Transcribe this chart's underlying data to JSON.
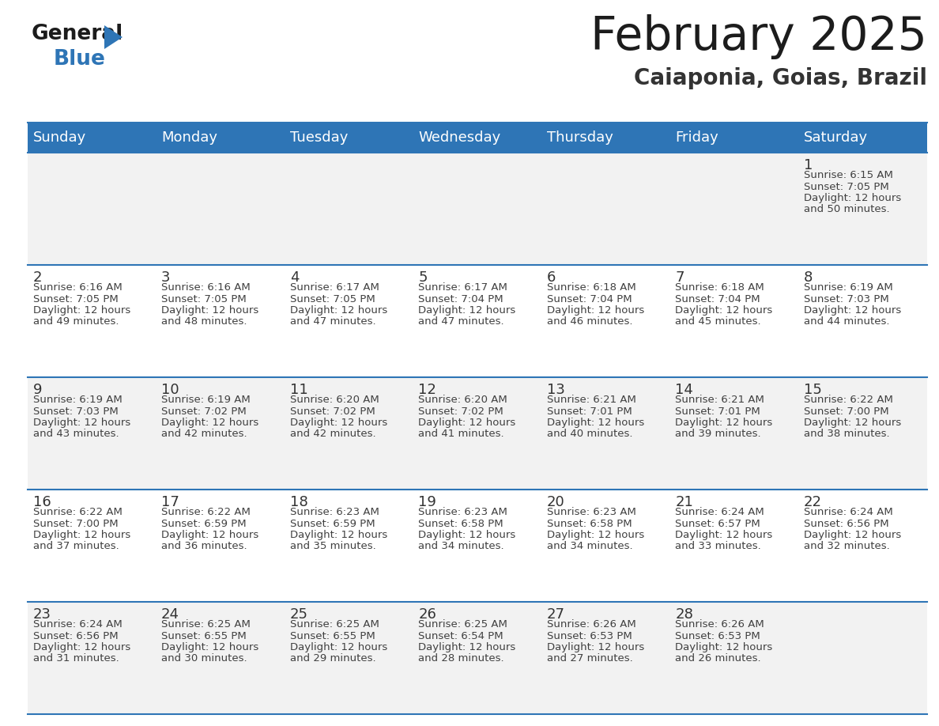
{
  "title": "February 2025",
  "subtitle": "Caiaponia, Goias, Brazil",
  "header_bg": "#2E75B6",
  "header_text_color": "#FFFFFF",
  "cell_bg_odd": "#F2F2F2",
  "cell_bg_even": "#FFFFFF",
  "day_names": [
    "Sunday",
    "Monday",
    "Tuesday",
    "Wednesday",
    "Thursday",
    "Friday",
    "Saturday"
  ],
  "border_color": "#2E75B6",
  "day_number_color": "#333333",
  "cell_text_color": "#404040",
  "days_data": [
    {
      "day": 1,
      "col": 6,
      "row": 0,
      "sunrise": "6:15 AM",
      "sunset": "7:05 PM",
      "daylight_hours": 12,
      "daylight_minutes": 50
    },
    {
      "day": 2,
      "col": 0,
      "row": 1,
      "sunrise": "6:16 AM",
      "sunset": "7:05 PM",
      "daylight_hours": 12,
      "daylight_minutes": 49
    },
    {
      "day": 3,
      "col": 1,
      "row": 1,
      "sunrise": "6:16 AM",
      "sunset": "7:05 PM",
      "daylight_hours": 12,
      "daylight_minutes": 48
    },
    {
      "day": 4,
      "col": 2,
      "row": 1,
      "sunrise": "6:17 AM",
      "sunset": "7:05 PM",
      "daylight_hours": 12,
      "daylight_minutes": 47
    },
    {
      "day": 5,
      "col": 3,
      "row": 1,
      "sunrise": "6:17 AM",
      "sunset": "7:04 PM",
      "daylight_hours": 12,
      "daylight_minutes": 47
    },
    {
      "day": 6,
      "col": 4,
      "row": 1,
      "sunrise": "6:18 AM",
      "sunset": "7:04 PM",
      "daylight_hours": 12,
      "daylight_minutes": 46
    },
    {
      "day": 7,
      "col": 5,
      "row": 1,
      "sunrise": "6:18 AM",
      "sunset": "7:04 PM",
      "daylight_hours": 12,
      "daylight_minutes": 45
    },
    {
      "day": 8,
      "col": 6,
      "row": 1,
      "sunrise": "6:19 AM",
      "sunset": "7:03 PM",
      "daylight_hours": 12,
      "daylight_minutes": 44
    },
    {
      "day": 9,
      "col": 0,
      "row": 2,
      "sunrise": "6:19 AM",
      "sunset": "7:03 PM",
      "daylight_hours": 12,
      "daylight_minutes": 43
    },
    {
      "day": 10,
      "col": 1,
      "row": 2,
      "sunrise": "6:19 AM",
      "sunset": "7:02 PM",
      "daylight_hours": 12,
      "daylight_minutes": 42
    },
    {
      "day": 11,
      "col": 2,
      "row": 2,
      "sunrise": "6:20 AM",
      "sunset": "7:02 PM",
      "daylight_hours": 12,
      "daylight_minutes": 42
    },
    {
      "day": 12,
      "col": 3,
      "row": 2,
      "sunrise": "6:20 AM",
      "sunset": "7:02 PM",
      "daylight_hours": 12,
      "daylight_minutes": 41
    },
    {
      "day": 13,
      "col": 4,
      "row": 2,
      "sunrise": "6:21 AM",
      "sunset": "7:01 PM",
      "daylight_hours": 12,
      "daylight_minutes": 40
    },
    {
      "day": 14,
      "col": 5,
      "row": 2,
      "sunrise": "6:21 AM",
      "sunset": "7:01 PM",
      "daylight_hours": 12,
      "daylight_minutes": 39
    },
    {
      "day": 15,
      "col": 6,
      "row": 2,
      "sunrise": "6:22 AM",
      "sunset": "7:00 PM",
      "daylight_hours": 12,
      "daylight_minutes": 38
    },
    {
      "day": 16,
      "col": 0,
      "row": 3,
      "sunrise": "6:22 AM",
      "sunset": "7:00 PM",
      "daylight_hours": 12,
      "daylight_minutes": 37
    },
    {
      "day": 17,
      "col": 1,
      "row": 3,
      "sunrise": "6:22 AM",
      "sunset": "6:59 PM",
      "daylight_hours": 12,
      "daylight_minutes": 36
    },
    {
      "day": 18,
      "col": 2,
      "row": 3,
      "sunrise": "6:23 AM",
      "sunset": "6:59 PM",
      "daylight_hours": 12,
      "daylight_minutes": 35
    },
    {
      "day": 19,
      "col": 3,
      "row": 3,
      "sunrise": "6:23 AM",
      "sunset": "6:58 PM",
      "daylight_hours": 12,
      "daylight_minutes": 34
    },
    {
      "day": 20,
      "col": 4,
      "row": 3,
      "sunrise": "6:23 AM",
      "sunset": "6:58 PM",
      "daylight_hours": 12,
      "daylight_minutes": 34
    },
    {
      "day": 21,
      "col": 5,
      "row": 3,
      "sunrise": "6:24 AM",
      "sunset": "6:57 PM",
      "daylight_hours": 12,
      "daylight_minutes": 33
    },
    {
      "day": 22,
      "col": 6,
      "row": 3,
      "sunrise": "6:24 AM",
      "sunset": "6:56 PM",
      "daylight_hours": 12,
      "daylight_minutes": 32
    },
    {
      "day": 23,
      "col": 0,
      "row": 4,
      "sunrise": "6:24 AM",
      "sunset": "6:56 PM",
      "daylight_hours": 12,
      "daylight_minutes": 31
    },
    {
      "day": 24,
      "col": 1,
      "row": 4,
      "sunrise": "6:25 AM",
      "sunset": "6:55 PM",
      "daylight_hours": 12,
      "daylight_minutes": 30
    },
    {
      "day": 25,
      "col": 2,
      "row": 4,
      "sunrise": "6:25 AM",
      "sunset": "6:55 PM",
      "daylight_hours": 12,
      "daylight_minutes": 29
    },
    {
      "day": 26,
      "col": 3,
      "row": 4,
      "sunrise": "6:25 AM",
      "sunset": "6:54 PM",
      "daylight_hours": 12,
      "daylight_minutes": 28
    },
    {
      "day": 27,
      "col": 4,
      "row": 4,
      "sunrise": "6:26 AM",
      "sunset": "6:53 PM",
      "daylight_hours": 12,
      "daylight_minutes": 27
    },
    {
      "day": 28,
      "col": 5,
      "row": 4,
      "sunrise": "6:26 AM",
      "sunset": "6:53 PM",
      "daylight_hours": 12,
      "daylight_minutes": 26
    }
  ],
  "num_rows": 5,
  "num_cols": 7,
  "fig_width": 11.88,
  "fig_height": 9.18,
  "dpi": 100
}
